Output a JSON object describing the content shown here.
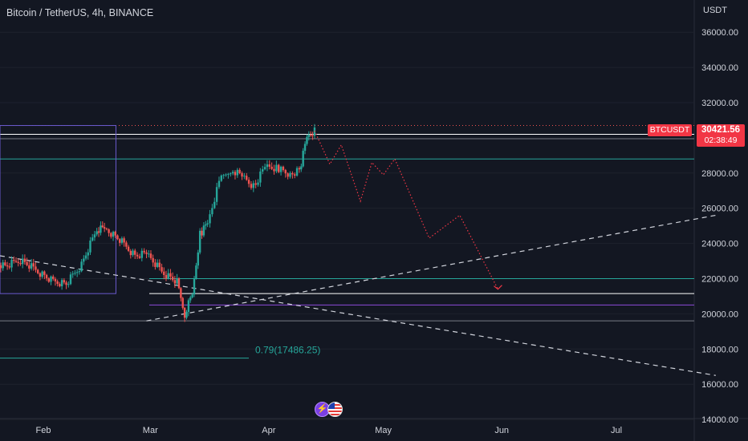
{
  "header": {
    "title": "Bitcoin / TetherUS, 4h, BINANCE",
    "currency": "USDT"
  },
  "price_axis": {
    "labels": [
      "36000.00",
      "34000.00",
      "32000.00",
      "28000.00",
      "26000.00",
      "24000.00",
      "22000.00",
      "20000.00",
      "18000.00",
      "16000.00",
      "14000.00"
    ]
  },
  "time_axis": {
    "labels": [
      "Feb",
      "Mar",
      "Apr",
      "May",
      "Jun",
      "Jul"
    ]
  },
  "badges": {
    "symbol": "BTCUSDT",
    "last_price": "30421.56",
    "countdown": "02:38:49"
  },
  "annotation": {
    "fib_label": "0.79(17486.25)"
  },
  "colors": {
    "background": "#131722",
    "up": "#26a69a",
    "down": "#ef5350",
    "badge": "#f23645",
    "grid": "#2a2e39",
    "teal_line": "#26a69a",
    "violet_line": "#8e4ad9",
    "box": "#6a5acd",
    "projection": "#f23645"
  },
  "chart_data": {
    "type": "candlestick",
    "symbol": "BTCUSDT",
    "interval": "4h",
    "exchange": "BINANCE",
    "x": [
      "2023-01-10",
      "2023-01-14",
      "2023-01-18",
      "2023-01-22",
      "2023-01-26",
      "2023-01-30",
      "2023-02-03",
      "2023-02-07",
      "2023-02-11",
      "2023-02-15",
      "2023-02-17",
      "2023-02-21",
      "2023-02-25",
      "2023-02-28",
      "2023-03-04",
      "2023-03-08",
      "2023-03-10",
      "2023-03-12",
      "2023-03-14",
      "2023-03-16",
      "2023-03-19",
      "2023-03-22",
      "2023-03-25",
      "2023-03-28",
      "2023-03-31",
      "2023-04-03",
      "2023-04-06",
      "2023-04-09",
      "2023-04-11",
      "2023-04-13"
    ],
    "close": [
      22800,
      22950,
      23100,
      22700,
      23050,
      22500,
      21900,
      21700,
      22800,
      24800,
      24900,
      24200,
      23300,
      23400,
      22400,
      21800,
      20000,
      21100,
      24500,
      25200,
      27500,
      28200,
      27800,
      27200,
      28400,
      28300,
      27900,
      28100,
      30100,
      30421.56
    ],
    "y_axis": {
      "min": 14000,
      "max": 36000,
      "currency": "USDT"
    },
    "last_price": 30421.56,
    "horizontal_levels": [
      {
        "price": 30700,
        "style": "dotted",
        "color": "#ef5350"
      },
      {
        "price": 30200,
        "style": "solid",
        "color": "#ffffff"
      },
      {
        "price": 29950,
        "style": "solid",
        "color": "#787b86"
      },
      {
        "price": 28800,
        "style": "solid",
        "color": "#26a69a"
      },
      {
        "price": 22000,
        "style": "solid",
        "color": "#26a69a"
      },
      {
        "price": 21150,
        "style": "solid",
        "color": "#ffffff"
      },
      {
        "price": 20500,
        "style": "solid",
        "color": "#8e4ad9"
      },
      {
        "price": 19600,
        "style": "solid",
        "color": "#787b86"
      },
      {
        "price": 17486.25,
        "style": "solid",
        "color": "#26a69a",
        "label": "0.79(17486.25)"
      }
    ],
    "box": {
      "from": "2023-01-10",
      "to": "2023-02-20",
      "price_top": 30700,
      "price_bottom": 21150
    },
    "trendlines": [
      {
        "from": [
          "2023-02-28",
          19600
        ],
        "to": [
          "2023-07-27",
          25600
        ],
        "style": "dashed"
      },
      {
        "from": [
          "2023-01-10",
          23300
        ],
        "to": [
          "2023-07-27",
          16500
        ],
        "style": "dashed"
      }
    ],
    "projection": {
      "style": "dotted",
      "points": [
        [
          "2023-04-13",
          30400
        ],
        [
          "2023-04-17",
          28500
        ],
        [
          "2023-04-20",
          29600
        ],
        [
          "2023-04-25",
          26400
        ],
        [
          "2023-04-28",
          28600
        ],
        [
          "2023-05-01",
          27900
        ],
        [
          "2023-05-04",
          28800
        ],
        [
          "2023-05-13",
          24300
        ],
        [
          "2023-05-21",
          25600
        ],
        [
          "2023-05-31",
          21400
        ]
      ]
    }
  }
}
